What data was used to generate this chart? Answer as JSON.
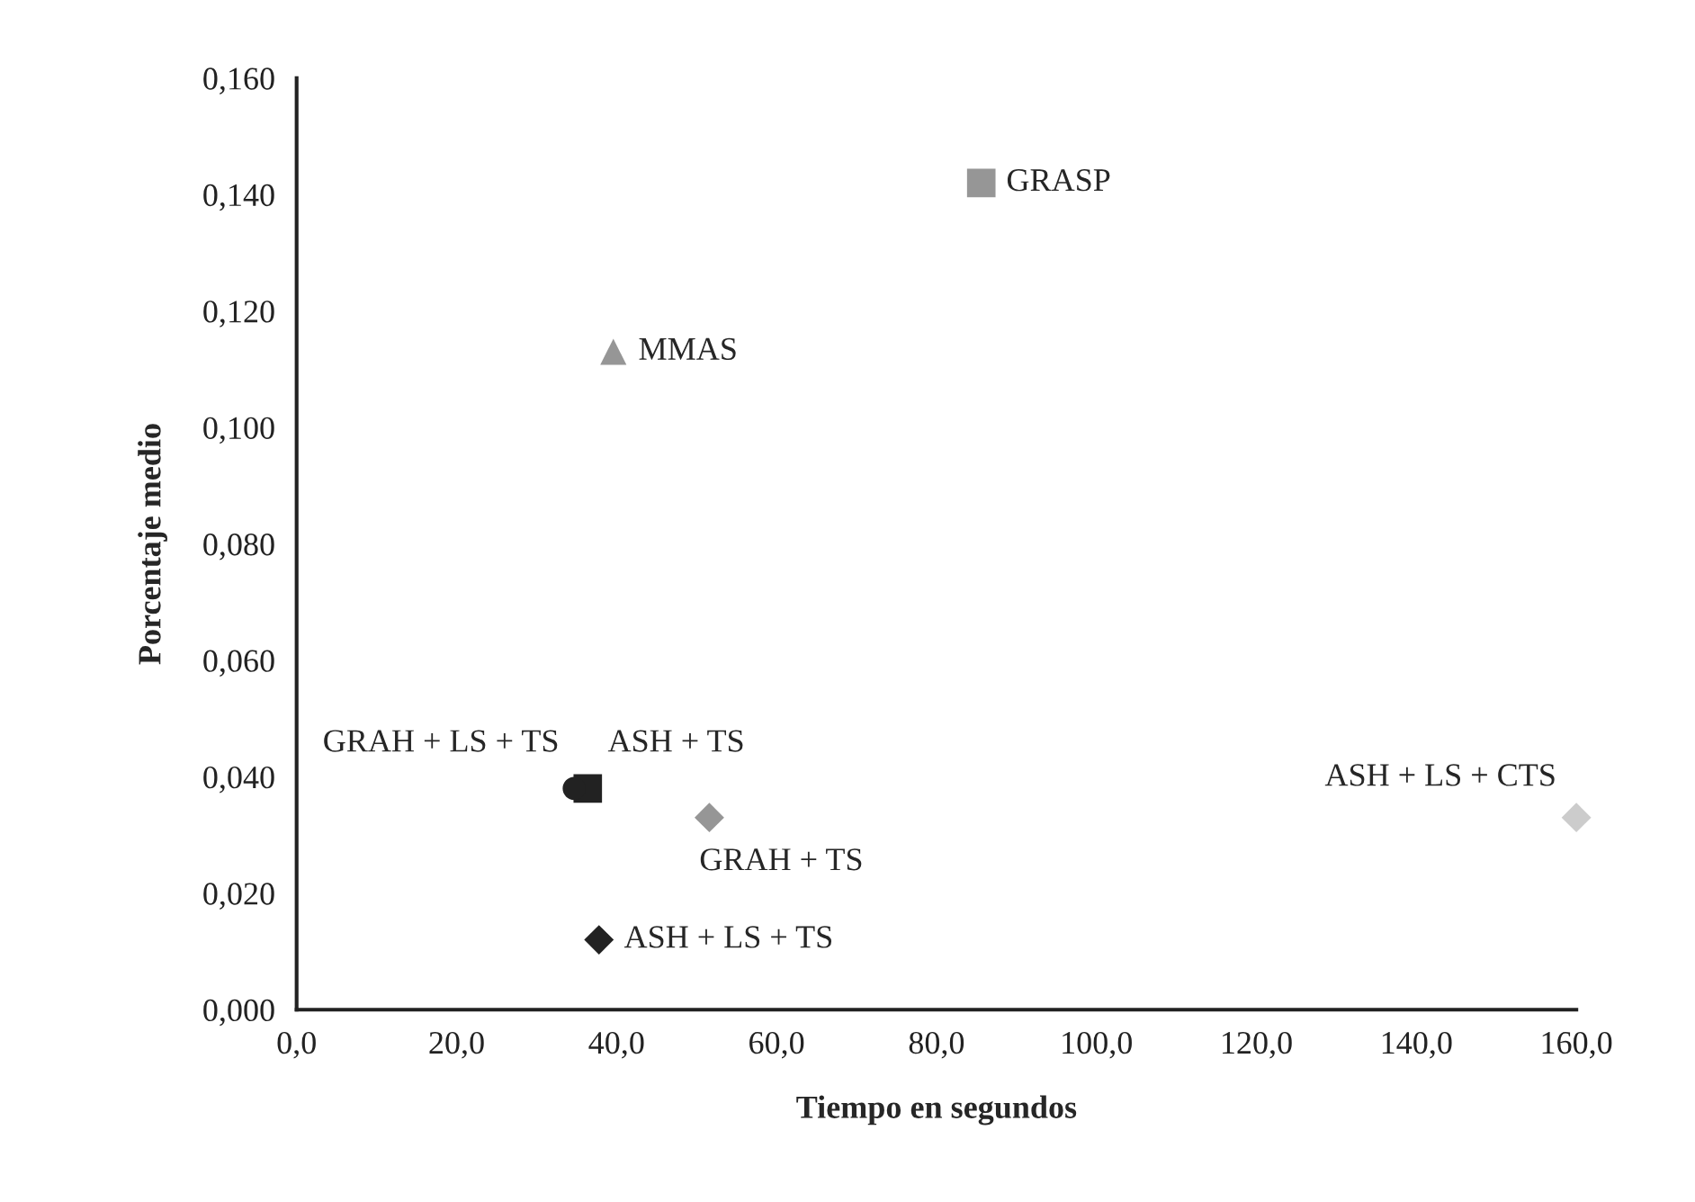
{
  "chart_data": {
    "type": "scatter",
    "xlabel": "Tiempo en segundos",
    "ylabel": "Porcentaje medio",
    "xlim": [
      0,
      160
    ],
    "xticks": [
      {
        "value": 0,
        "label": "0,0"
      },
      {
        "value": 20,
        "label": "20,0"
      },
      {
        "value": 40,
        "label": "40,0"
      },
      {
        "value": 60,
        "label": "60,0"
      },
      {
        "value": 80,
        "label": "80,0"
      },
      {
        "value": 100,
        "label": "100,0"
      },
      {
        "value": 120,
        "label": "120,0"
      },
      {
        "value": 140,
        "label": "140,0"
      },
      {
        "value": 160,
        "label": "160,0"
      }
    ],
    "ylim": [
      0,
      0.16
    ],
    "yticks": [
      {
        "value": 0,
        "label": "0,000"
      },
      {
        "value": 0.02,
        "label": "0,020"
      },
      {
        "value": 0.04,
        "label": "0,040"
      },
      {
        "value": 0.06,
        "label": "0,060"
      },
      {
        "value": 0.08,
        "label": "0,080"
      },
      {
        "value": 0.1,
        "label": "0,100"
      },
      {
        "value": 0.12,
        "label": "0,120"
      },
      {
        "value": 0.14,
        "label": "0,140"
      },
      {
        "value": 0.16,
        "label": "0,160"
      }
    ],
    "grid": false,
    "legend": false,
    "series": [
      {
        "name": "GRASP",
        "color": "#969696",
        "marker": "square",
        "x": [
          85.6
        ],
        "values": [
          0.142
        ]
      },
      {
        "name": "MMAS",
        "color": "#969696",
        "marker": "triangle",
        "x": [
          39.6
        ],
        "values": [
          0.113
        ]
      },
      {
        "name": "GRAH + LS + TS",
        "color": "#222222",
        "marker": "circle",
        "x": [
          34.7
        ],
        "values": [
          0.038
        ]
      },
      {
        "name": "ASH + TS",
        "color": "#222222",
        "marker": "square",
        "x": [
          36.4
        ],
        "values": [
          0.038
        ]
      },
      {
        "name": "GRAH + TS",
        "color": "#969696",
        "marker": "diamond",
        "x": [
          51.6
        ],
        "values": [
          0.033
        ]
      },
      {
        "name": "ASH + LS + TS",
        "color": "#222222",
        "marker": "diamond",
        "x": [
          37.8
        ],
        "values": [
          0.012
        ]
      },
      {
        "name": "ASH + LS + CTS",
        "color": "#cccccc",
        "marker": "diamond",
        "x": [
          160
        ],
        "values": [
          0.033
        ]
      }
    ]
  }
}
